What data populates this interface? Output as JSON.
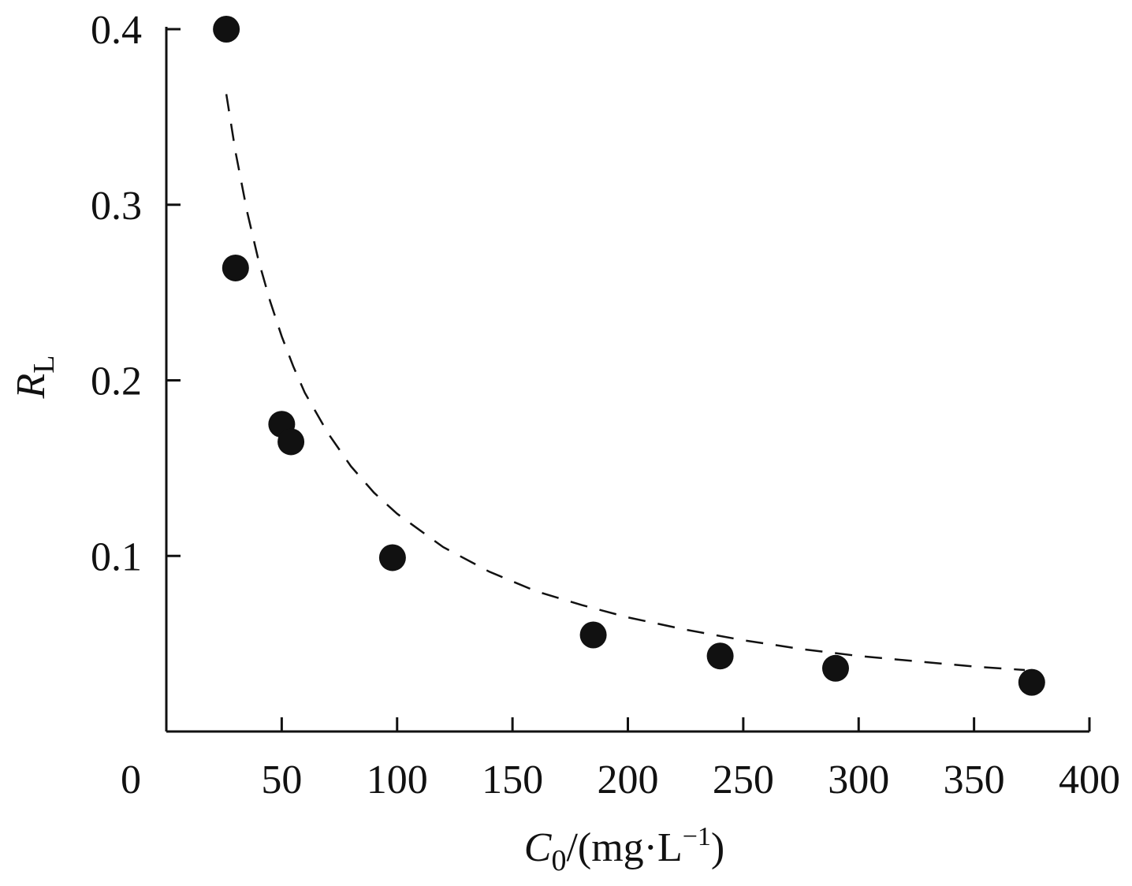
{
  "chart_data": {
    "type": "scatter",
    "title": "",
    "xlabel": {
      "var": "C",
      "sub": "0",
      "unit_open": "/(mg·L",
      "sup": "−1",
      "unit_close": ")"
    },
    "ylabel": {
      "var": "R",
      "sub": "L"
    },
    "xlim": [
      0,
      400
    ],
    "ylim": [
      0,
      0.4
    ],
    "x_ticks": [
      0,
      50,
      100,
      150,
      200,
      250,
      300,
      350,
      400
    ],
    "x_tick_labels": [
      "0",
      "50",
      "100",
      "150",
      "200",
      "250",
      "300",
      "350",
      "400"
    ],
    "y_ticks": [
      0.1,
      0.2,
      0.3,
      0.4
    ],
    "y_tick_labels": [
      "0.1",
      "0.2",
      "0.3",
      "0.4"
    ],
    "grid": false,
    "legend": "none",
    "marker_color": "#111111",
    "points": [
      {
        "x": 26,
        "y": 0.4
      },
      {
        "x": 30,
        "y": 0.264
      },
      {
        "x": 50,
        "y": 0.175
      },
      {
        "x": 54,
        "y": 0.165
      },
      {
        "x": 98,
        "y": 0.099
      },
      {
        "x": 185,
        "y": 0.055
      },
      {
        "x": 240,
        "y": 0.043
      },
      {
        "x": 290,
        "y": 0.036
      },
      {
        "x": 375,
        "y": 0.028
      }
    ],
    "fit_line": {
      "style": "dashed",
      "x": [
        26,
        30,
        35,
        40,
        45,
        50,
        55,
        60,
        70,
        80,
        90,
        100,
        120,
        140,
        160,
        180,
        200,
        225,
        250,
        275,
        300,
        325,
        350,
        372
      ],
      "y": [
        0.363,
        0.33,
        0.296,
        0.268,
        0.245,
        0.225,
        0.208,
        0.193,
        0.17,
        0.151,
        0.136,
        0.124,
        0.105,
        0.091,
        0.08,
        0.072,
        0.065,
        0.058,
        0.052,
        0.047,
        0.043,
        0.04,
        0.037,
        0.035
      ]
    }
  }
}
